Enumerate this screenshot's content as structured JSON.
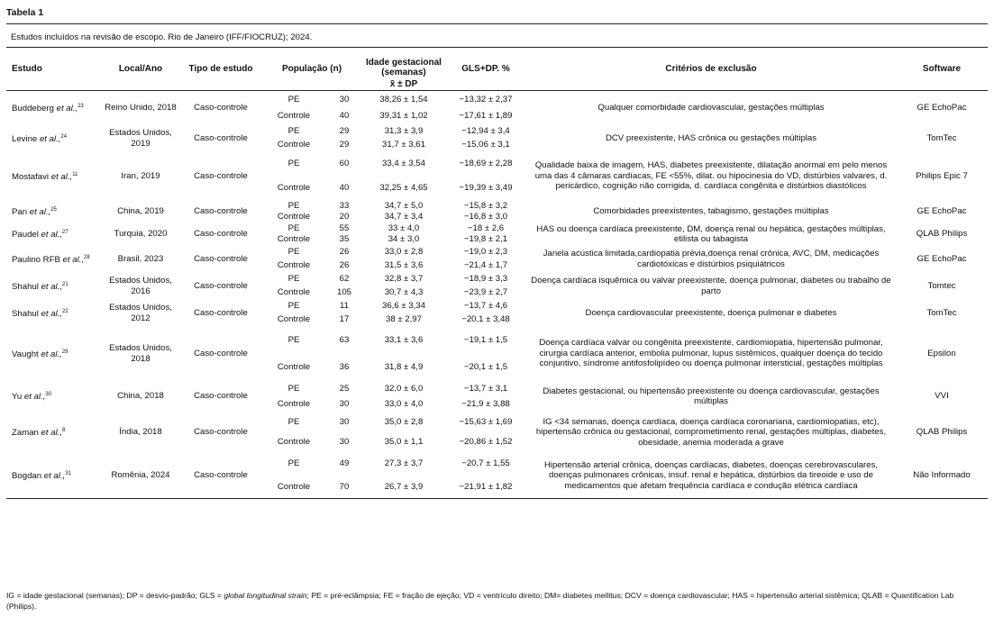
{
  "title": "Tabela 1",
  "caption": "Estudos incluídos na revisão de escopo. Rio de Janeiro (IFF/FIOCRUZ); 2024.",
  "headers": {
    "estudo": "Estudo",
    "local": "Local/Ano",
    "tipo": "Tipo de estudo",
    "populacao": "População (n)",
    "ig": "Idade gestacional (semanas)",
    "ig_sub": "x̄  ± DP",
    "gls": "GLS+DP. %",
    "criterios": "Critérios de exclusão",
    "software": "Software"
  },
  "studies": [
    {
      "author": "Buddeberg",
      "etal": "et al.,",
      "ref": "23",
      "local": "Reino Unido, 2018",
      "tipo": "Caso-controle",
      "pe_label": "PE",
      "pe_n": "30",
      "pe_ig": "38,26 ± 1,54",
      "pe_gls": "−13,32 ± 2,37",
      "c_label": "Controle",
      "c_n": "40",
      "c_ig": "39,31 ± 1,02",
      "c_gls": "−17,61 ± 1,89",
      "criterios": "Qualquer comorbidade cardiovascular, gestações múltiplas",
      "software": "GE EchoPac"
    },
    {
      "author": "Levine",
      "etal": "et al.,",
      "ref": "24",
      "local": "Estados Unidos, 2019",
      "tipo": "Caso-controle",
      "pe_label": "PE",
      "pe_n": "29",
      "pe_ig": "31,3 ± 3,9",
      "pe_gls": "−12,94 ± 3,4",
      "c_label": "Controle",
      "c_n": "29",
      "c_ig": "31,7 ± 3,61",
      "c_gls": "−15,06 ± 3,1",
      "criterios": "DCV preexistente, HAS crônica ou gestações múltiplas",
      "software": "TomTec"
    },
    {
      "author": "Mostafavi",
      "etal": "et al.,",
      "ref": "11",
      "local": "Iran, 2019",
      "tipo": "Caso-controle",
      "pe_label": "PE",
      "pe_n": "60",
      "pe_ig": "33,4 ± 3,54",
      "pe_gls": "−18,69 ± 2,28",
      "c_label": "Controle",
      "c_n": "40",
      "c_ig": "32,25 ± 4,65",
      "c_gls": "−19,39 ± 3,49",
      "criterios": "Qualidade baixa de imagem, HAS, diabetes preexistente, dilatação anormal em pelo menos uma das 4 câmaras cardíacas, FE <55%, dilat. ou hipocinesia do VD, distúrbios valvares, d. pericárdico, cognição não corrigida, d. cardíaca congênita e distúrbios diastólicos",
      "software": "Philips Epic 7"
    },
    {
      "author": "Pan",
      "etal": "et al.,",
      "ref": "25",
      "local": "China, 2019",
      "tipo": "Caso-controle",
      "pe_label": "PE",
      "pe_n": "33",
      "pe_ig": "34,7 ± 5,0",
      "pe_gls": "−15,8 ± 3,2",
      "c_label": "Controle",
      "c_n": "20",
      "c_ig": "34,7 ± 3,4",
      "c_gls": "−16,8 ± 3,0",
      "criterios": "Comorbidades preexistentes, tabagismo, gestações múltiplas",
      "software": "GE EchoPac"
    },
    {
      "author": "Paudel",
      "etal": "et al.,",
      "ref": "27",
      "local": "Turquia, 2020",
      "tipo": "Caso-controle",
      "pe_label": "PE",
      "pe_n": "55",
      "pe_ig": "33 ± 4,0",
      "pe_gls": "−18 ± 2,6",
      "c_label": "Controle",
      "c_n": "35",
      "c_ig": "34 ± 3,0",
      "c_gls": "−19,8 ± 2,1",
      "criterios": "HAS ou doença cardíaca preexistente, DM, doença renal ou hepática, gestações múltiplas, etilista ou tabagista",
      "software": "QLAB Philips"
    },
    {
      "author": "Paulino RFB",
      "etal": "et al.,",
      "ref": "28",
      "local": "Brasil, 2023",
      "tipo": "Caso-controle",
      "pe_label": "PE",
      "pe_n": "26",
      "pe_ig": "33,0 ± 2,8",
      "pe_gls": "−19,0 ± 2,3",
      "c_label": "Controle",
      "c_n": "26",
      "c_ig": "31,5 ± 3,6",
      "c_gls": "−21,4 ± 1,7",
      "criterios": "Janela acústica limitada,cardiopatia prévia,doença renal crônica, AVC, DM, medicações cardiotóxicas e distúrbios psiquiátricos",
      "software": "GE EchoPac"
    },
    {
      "author": "Shahul",
      "etal": "et al.,",
      "ref": "21",
      "local": "Estados Unidos, 2016",
      "tipo": "Caso-controle",
      "pe_label": "PE",
      "pe_n": "62",
      "pe_ig": "32,8 ± 3,7",
      "pe_gls": "−18,9 ± 3,3",
      "c_label": "Controle",
      "c_n": "105",
      "c_ig": "30,7 ± 4,3",
      "c_gls": "−23,9 ± 2,7",
      "criterios": "Doença cardíaca isquêmica ou valvar preexistente, doença pulmonar, diabetes ou trabalho de parto",
      "software": "Tomtec"
    },
    {
      "author": "Shahul",
      "etal": "et al.,",
      "ref": "22",
      "local": "Estados Unidos, 2012",
      "tipo": "Caso-controle",
      "pe_label": "PE",
      "pe_n": "11",
      "pe_ig": "36,6 ± 3,34",
      "pe_gls": "−13,7 ± 4,6",
      "c_label": "Controle",
      "c_n": "17",
      "c_ig": "38 ± 2,97",
      "c_gls": "−20,1 ± 3,48",
      "criterios": "Doença cardiovascular preexistente, doença pulmonar e diabetes",
      "software": "TomTec"
    },
    {
      "author": "Vaught",
      "etal": "et al.,",
      "ref": "29",
      "local": "Estados Unidos, 2018",
      "tipo": "Caso-controle",
      "pe_label": "PE",
      "pe_n": "63",
      "pe_ig": "33,1 ± 3,6",
      "pe_gls": "−19,1 ± 1,5",
      "c_label": "Controle",
      "c_n": "36",
      "c_ig": "31,8 ± 4,9",
      "c_gls": "−20,1 ± 1,5",
      "criterios": "Doença cardíaca valvar ou congênita preexistente, cardiomiopatia, hipertensão pulmonar, cirurgia cardíaca anterior, embolia pulmonar, lupus sistêmicos, qualquer doença do tecido conjuntivo, síndrome antifosfolipídeo ou doença pulmonar intersticial, gestações múltiplas",
      "software": "Epsilon"
    },
    {
      "author": "Yu",
      "etal": "et al.,",
      "ref": "30",
      "local": "China, 2018",
      "tipo": "Caso-controle",
      "pe_label": "PE",
      "pe_n": "25",
      "pe_ig": "32,0 ± 6,0",
      "pe_gls": "−13,7 ± 3,1",
      "c_label": "Controle",
      "c_n": "30",
      "c_ig": "33,0 ± 4,0",
      "c_gls": "−21,9 ± 3,88",
      "criterios": "Diabetes gestacional, ou hipertensão preexistente ou doença cardiovascular, gestações múltiplas",
      "software": "VVI"
    },
    {
      "author": "Zaman",
      "etal": "et al.,",
      "ref": "8",
      "local": "Índia, 2018",
      "tipo": "Caso-controle",
      "pe_label": "PE",
      "pe_n": "30",
      "pe_ig": "35,0 ± 2,8",
      "pe_gls": "−15,63 ± 1,69",
      "c_label": "Controle",
      "c_n": "30",
      "c_ig": "35,0 ± 1,1",
      "c_gls": "−20,86 ± 1,52",
      "criterios": "IG <34 semanas, doença cardíaca, doença cardíaca coronariana, cardiomiopatias, etc), hipertensão crônica ou gestacional, comprometimento renal, gestações múltiplas, diabetes, obesidade, anemia moderada a grave",
      "software": "QLAB Philips"
    },
    {
      "author": "Bogdan",
      "etal": "et al.,",
      "ref": "31",
      "local": "Romênia, 2024",
      "tipo": "Caso-controle",
      "pe_label": "PE",
      "pe_n": "49",
      "pe_ig": "27,3 ± 3,7",
      "pe_gls": "−20,7 ± 1,55",
      "c_label": "Controle",
      "c_n": "70",
      "c_ig": "26,7 ± 3,9",
      "c_gls": "−21,91 ± 1,82",
      "criterios": "Hipertensão arterial crônica, doenças cardíacas, diabetes, doenças cerebrovasculares, doenças pulmonares crônicas, insuf. renal e hepática, distúrbios da tireoide e uso de medicamentos que afetam frequência cardíaca e condução elétrica cardíaca",
      "software": "Não Informado"
    }
  ],
  "footnote_a": "IG = idade gestacional (semanas); DP = desvio-padrão; GLS = ",
  "footnote_italic": "global longitudinal strain",
  "footnote_b": "; PE = pré-eclâmpsia; FE = fração de ejeção; VD = ventrículo direito; DM= diabetes mellitus; DCV = doença cardiovascular; HAS = hipertensão arterial sistêmica; QLAB = Quantification Lab (Philips)."
}
